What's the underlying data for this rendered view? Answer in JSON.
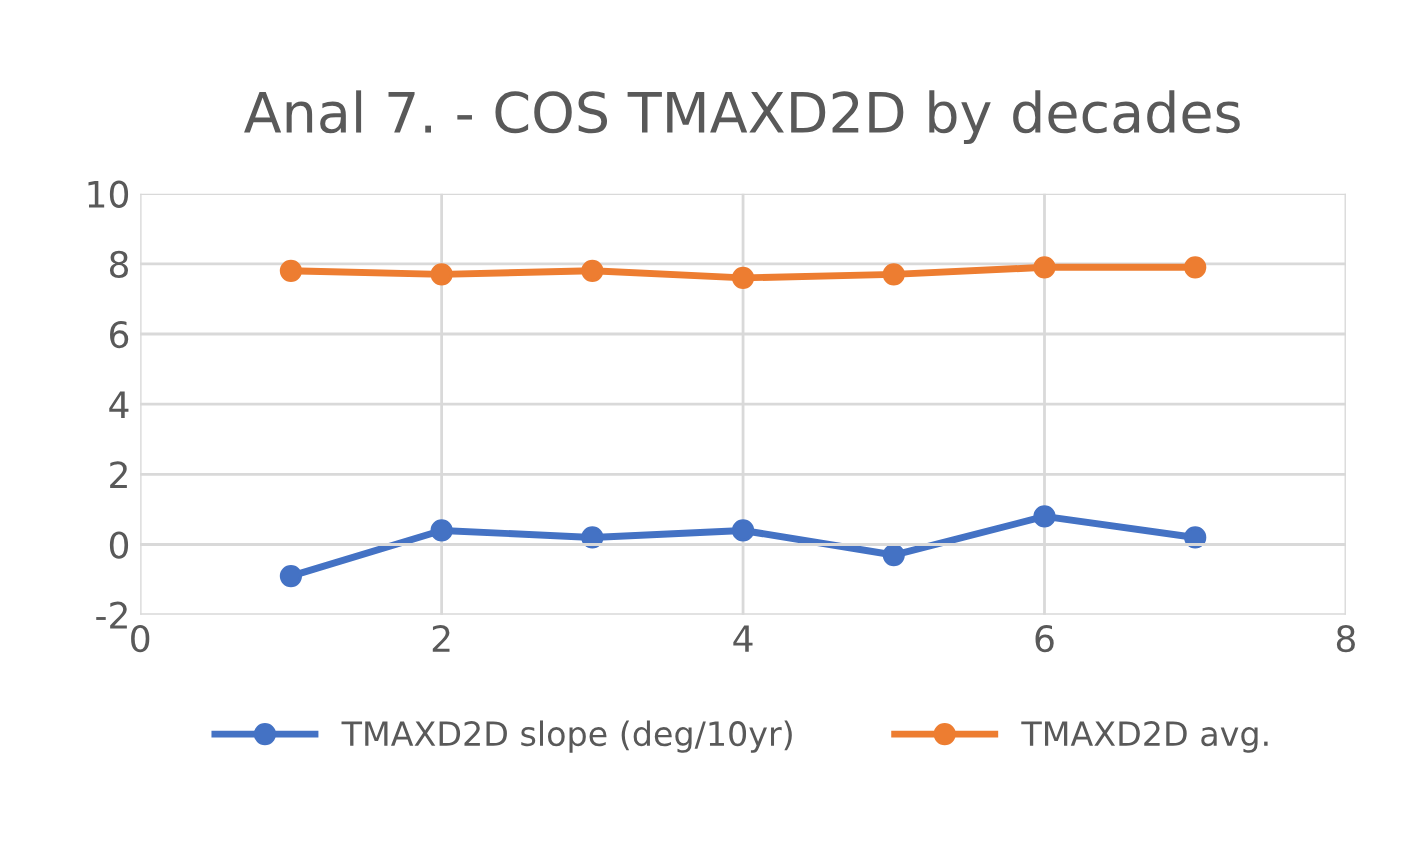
{
  "chart_data": {
    "type": "line",
    "title": "Anal 7. - COS TMAXD2D by decades",
    "x": [
      1,
      2,
      3,
      4,
      5,
      6,
      7
    ],
    "series": [
      {
        "name": "TMAXD2D slope (deg/10yr)",
        "color": "#4472c4",
        "values": [
          -0.9,
          0.4,
          0.2,
          0.4,
          -0.3,
          0.8,
          0.2
        ]
      },
      {
        "name": "TMAXD2D avg.",
        "color": "#ed7d31",
        "values": [
          7.8,
          7.7,
          7.8,
          7.6,
          7.7,
          7.9,
          7.9
        ]
      }
    ],
    "xlim": [
      0,
      8
    ],
    "xticks": [
      0,
      2,
      4,
      6,
      8
    ],
    "ylim": [
      -2,
      10
    ],
    "yticks": [
      -2,
      0,
      2,
      4,
      6,
      8,
      10
    ],
    "grid": true,
    "legend": "bottom",
    "marker": "circle",
    "line_style": "solid"
  }
}
